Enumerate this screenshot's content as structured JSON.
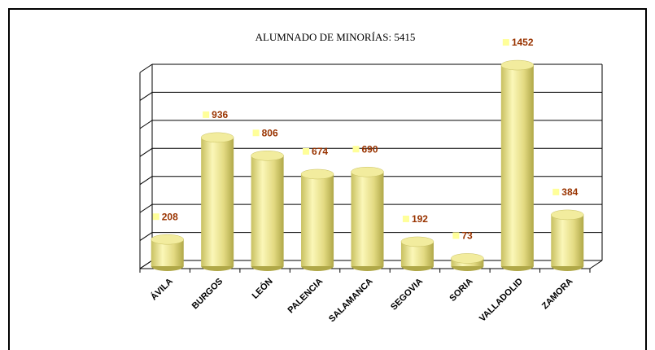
{
  "chart_data": {
    "type": "bar",
    "title": "ALUMNADO DE MINORÍAS: 5415",
    "categories": [
      "ÁVILA",
      "BURGOS",
      "LEÓN",
      "PALENCIA",
      "SALAMANCA",
      "SEGOVIA",
      "SORIA",
      "VALLADOLID",
      "ZAMORA"
    ],
    "values": [
      208,
      936,
      806,
      674,
      690,
      192,
      73,
      1452,
      384
    ],
    "color": "#e8e08a",
    "ylim": [
      0,
      1400
    ],
    "yticks": [
      0,
      200,
      400,
      600,
      800,
      1000,
      1200,
      1400
    ],
    "grid": true
  }
}
